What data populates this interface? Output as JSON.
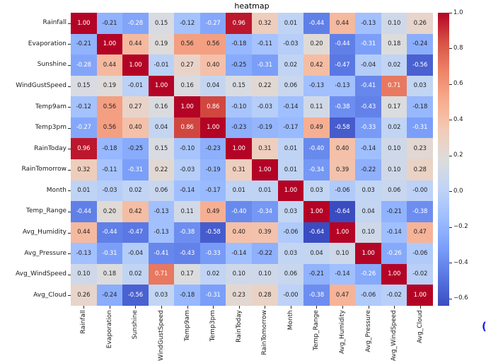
{
  "chart_data": {
    "type": "heatmap",
    "title": "heatmap",
    "colormap": "coolwarm",
    "vmin": -0.64,
    "vmax": 1.0,
    "annotated": true,
    "legend_position": "colorbar-right",
    "categories": [
      "Rainfall",
      "Evaporation",
      "Sunshine",
      "WindGustSpeed",
      "Temp9am",
      "Temp3pm",
      "RainToday",
      "RainTomorrow",
      "Month",
      "Temp_Range",
      "Avg_Humidity",
      "Avg_Pressure",
      "Avg_WindSpeed",
      "Avg_Cloud"
    ],
    "matrix": [
      [
        "1.00",
        "-0.21",
        "-0.28",
        "0.15",
        "-0.12",
        "-0.27",
        "0.96",
        "0.32",
        "0.01",
        "-0.44",
        "0.44",
        "-0.13",
        "0.10",
        "0.26"
      ],
      [
        "-0.21",
        "1.00",
        "0.44",
        "0.19",
        "0.56",
        "0.56",
        "-0.18",
        "-0.11",
        "-0.03",
        "0.20",
        "-0.44",
        "-0.31",
        "0.18",
        "-0.24"
      ],
      [
        "-0.28",
        "0.44",
        "1.00",
        "-0.01",
        "0.27",
        "0.40",
        "-0.25",
        "-0.31",
        "0.02",
        "0.42",
        "-0.47",
        "-0.04",
        "0.02",
        "-0.56"
      ],
      [
        "0.15",
        "0.19",
        "-0.01",
        "1.00",
        "0.16",
        "0.04",
        "0.15",
        "0.22",
        "0.06",
        "-0.13",
        "-0.13",
        "-0.41",
        "0.71",
        "0.03"
      ],
      [
        "-0.12",
        "0.56",
        "0.27",
        "0.16",
        "1.00",
        "0.86",
        "-0.10",
        "-0.03",
        "-0.14",
        "0.11",
        "-0.38",
        "-0.43",
        "0.17",
        "-0.18"
      ],
      [
        "-0.27",
        "0.56",
        "0.40",
        "0.04",
        "0.86",
        "1.00",
        "-0.23",
        "-0.19",
        "-0.17",
        "0.49",
        "-0.58",
        "-0.33",
        "0.02",
        "-0.31"
      ],
      [
        "0.96",
        "-0.18",
        "-0.25",
        "0.15",
        "-0.10",
        "-0.23",
        "1.00",
        "0.31",
        "0.01",
        "-0.40",
        "0.40",
        "-0.14",
        "0.10",
        "0.23"
      ],
      [
        "0.32",
        "-0.11",
        "-0.31",
        "0.22",
        "-0.03",
        "-0.19",
        "0.31",
        "1.00",
        "0.01",
        "-0.34",
        "0.39",
        "-0.22",
        "0.10",
        "0.28"
      ],
      [
        "0.01",
        "-0.03",
        "0.02",
        "0.06",
        "-0.14",
        "-0.17",
        "0.01",
        "0.01",
        "1.00",
        "0.03",
        "-0.06",
        "0.03",
        "0.06",
        "-0.00"
      ],
      [
        "-0.44",
        "0.20",
        "0.42",
        "-0.13",
        "0.11",
        "0.49",
        "-0.40",
        "-0.34",
        "0.03",
        "1.00",
        "-0.64",
        "0.04",
        "-0.21",
        "-0.38"
      ],
      [
        "0.44",
        "-0.44",
        "-0.47",
        "-0.13",
        "-0.38",
        "-0.58",
        "0.40",
        "0.39",
        "-0.06",
        "-0.64",
        "1.00",
        "0.10",
        "-0.14",
        "0.47"
      ],
      [
        "-0.13",
        "-0.31",
        "-0.04",
        "-0.41",
        "-0.43",
        "-0.33",
        "-0.14",
        "-0.22",
        "0.03",
        "0.04",
        "0.10",
        "1.00",
        "-0.26",
        "-0.06"
      ],
      [
        "0.10",
        "0.18",
        "0.02",
        "0.71",
        "0.17",
        "0.02",
        "0.10",
        "0.10",
        "0.06",
        "-0.21",
        "-0.14",
        "-0.26",
        "1.00",
        "-0.02"
      ],
      [
        "0.26",
        "-0.24",
        "-0.56",
        "0.03",
        "-0.18",
        "-0.31",
        "0.23",
        "0.28",
        "-0.00",
        "-0.38",
        "0.47",
        "-0.06",
        "-0.02",
        "1.00"
      ]
    ],
    "colorbar_ticks": [
      {
        "label": "1.0",
        "value": 1.0
      },
      {
        "label": "0.8",
        "value": 0.8
      },
      {
        "label": "0.6",
        "value": 0.6
      },
      {
        "label": "0.4",
        "value": 0.4
      },
      {
        "label": "0.2",
        "value": 0.2
      },
      {
        "label": "0.0",
        "value": 0.0
      },
      {
        "label": "−0.2",
        "value": -0.2
      },
      {
        "label": "−0.4",
        "value": -0.4
      },
      {
        "label": "−0.6",
        "value": -0.6
      }
    ]
  },
  "colors": {
    "background": "#ffffff",
    "annot_dark": "#262626",
    "annot_light": "#ffffff",
    "tick": "#262626",
    "stray_mark_blue": "#1d1deb",
    "colormap_anchors": [
      "#3b4cc0",
      "#5977e3",
      "#7b9ff9",
      "#9ebeff",
      "#c0d4f5",
      "#dddcdc",
      "#f2cbb7",
      "#f7ac8e",
      "#ee8468",
      "#d65244",
      "#b40426"
    ]
  },
  "stray_mark": "("
}
